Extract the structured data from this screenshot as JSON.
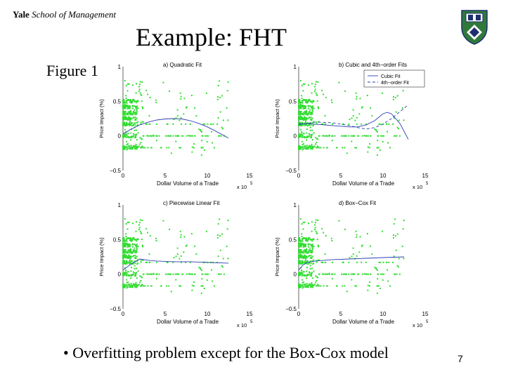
{
  "header": {
    "brand_bold": "Yale",
    "brand_italic": "School of Management"
  },
  "slide": {
    "title": "Example: FHT",
    "figure_label": "Figure 1",
    "bullet": "• Overfitting problem except for the Box-Cox model",
    "page_number": "7"
  },
  "colors": {
    "points": "#33dd33",
    "fit_line": "#2b3fb0",
    "axes": "#000000",
    "logo_green": "#2f7a3a",
    "logo_navy": "#1d2f6f"
  },
  "icons": {
    "logo": "yale-shield-icon"
  },
  "chart_data": [
    {
      "type": "scatter",
      "title": "a) Quadratic Fit",
      "xlabel": "Dollar Volume of a Trade",
      "ylabel": "Price Impact (%)",
      "x_multiplier": "x 10",
      "x_multiplier_exp": "5",
      "xlim": [
        0,
        15
      ],
      "ylim": [
        -0.5,
        1
      ],
      "xticks": [
        "0",
        "5",
        "10",
        "15"
      ],
      "yticks": [
        "1",
        "0.5",
        "0",
        "−0.5"
      ],
      "series": [
        {
          "kind": "line",
          "dash": "",
          "x": [
            0,
            1,
            2,
            3,
            4,
            5,
            6,
            7,
            8,
            9,
            10,
            11,
            12.5
          ],
          "y": [
            0.03,
            0.1,
            0.16,
            0.2,
            0.23,
            0.245,
            0.25,
            0.245,
            0.22,
            0.18,
            0.13,
            0.07,
            -0.03
          ]
        }
      ]
    },
    {
      "type": "scatter",
      "title": "b) Cubic and 4th−order Fits",
      "xlabel": "Dollar Volume of a Trade",
      "ylabel": "Price Impact (%)",
      "x_multiplier": "x 10",
      "x_multiplier_exp": "5",
      "xlim": [
        0,
        15
      ],
      "ylim": [
        -0.5,
        1
      ],
      "xticks": [
        "0",
        "5",
        "10",
        "15"
      ],
      "yticks": [
        "1",
        "0.5",
        "0",
        "−0.5"
      ],
      "legend": [
        {
          "name": "Cubic Fit",
          "dash": ""
        },
        {
          "name": "4th−order Fit",
          "dash": "4,3"
        }
      ],
      "series": [
        {
          "name": "Cubic Fit",
          "kind": "line",
          "dash": "",
          "x": [
            0,
            2,
            4,
            6,
            7,
            8,
            9,
            10,
            10.5,
            11,
            12,
            13
          ],
          "y": [
            0.18,
            0.17,
            0.15,
            0.13,
            0.13,
            0.16,
            0.22,
            0.32,
            0.34,
            0.32,
            0.18,
            -0.05
          ]
        },
        {
          "name": "4th−order Fit",
          "kind": "line",
          "dash": "4,3",
          "x": [
            0,
            2,
            4,
            6,
            7,
            8,
            9,
            10,
            11,
            12,
            13
          ],
          "y": [
            0.16,
            0.2,
            0.19,
            0.15,
            0.12,
            0.1,
            0.12,
            0.17,
            0.25,
            0.35,
            0.45
          ]
        }
      ]
    },
    {
      "type": "scatter",
      "title": "c) Piecewise Linear Fit",
      "xlabel": "Dollar Volume of a Trade",
      "ylabel": "Price Impact (%)",
      "x_multiplier": "x 10",
      "x_multiplier_exp": "5",
      "xlim": [
        0,
        15
      ],
      "ylim": [
        -0.5,
        1
      ],
      "xticks": [
        "0",
        "5",
        "10",
        "15"
      ],
      "yticks": [
        "1",
        "0.5",
        "0",
        "−0.5"
      ],
      "series": [
        {
          "kind": "line",
          "dash": "",
          "x": [
            0,
            1,
            2,
            3,
            4,
            6,
            8,
            10,
            12.5
          ],
          "y": [
            0.06,
            0.15,
            0.22,
            0.2,
            0.19,
            0.18,
            0.18,
            0.17,
            0.16
          ]
        }
      ]
    },
    {
      "type": "scatter",
      "title": "d) Box−Cox Fit",
      "xlabel": "Dollar Volume of a Trade",
      "ylabel": "Price Impact (%)",
      "x_multiplier": "x 10",
      "x_multiplier_exp": "5",
      "xlim": [
        0,
        15
      ],
      "ylim": [
        -0.5,
        1
      ],
      "xticks": [
        "0",
        "5",
        "10",
        "15"
      ],
      "yticks": [
        "1",
        "0.5",
        "0",
        "−0.5"
      ],
      "series": [
        {
          "kind": "line",
          "dash": "",
          "x": [
            0,
            0.5,
            1,
            2,
            4,
            6,
            8,
            10,
            12.5
          ],
          "y": [
            0.06,
            0.13,
            0.17,
            0.19,
            0.21,
            0.22,
            0.23,
            0.24,
            0.25
          ]
        }
      ]
    }
  ]
}
